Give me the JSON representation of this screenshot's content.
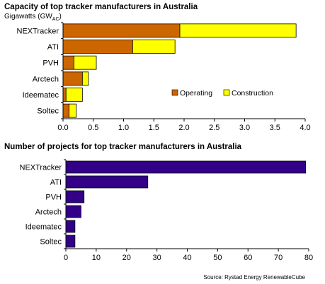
{
  "chart_data": [
    {
      "type": "bar",
      "orientation": "horizontal",
      "stacked": true,
      "title": "Capacity of top tracker manufacturers in Australia",
      "unit_prefix": "Gigawatts (GW",
      "unit_sub": "AC",
      "unit_suffix": ")",
      "categories": [
        "NEXTracker",
        "ATI",
        "PVH",
        "Arctech",
        "Ideematec",
        "Soltec"
      ],
      "series": [
        {
          "name": "Operating",
          "color": "#cc6600",
          "values": [
            1.93,
            1.15,
            0.18,
            0.32,
            0.05,
            0.1
          ]
        },
        {
          "name": "Construction",
          "color": "#ffff00",
          "values": [
            1.92,
            0.7,
            0.37,
            0.1,
            0.27,
            0.12
          ]
        }
      ],
      "xlim": [
        0,
        4.0
      ],
      "xticks": [
        "0.0",
        "0.5",
        "1.0",
        "1.5",
        "2.0",
        "2.5",
        "3.0",
        "3.5",
        "4.0"
      ],
      "grid": false,
      "legend_position": "bottom-right"
    },
    {
      "type": "bar",
      "orientation": "horizontal",
      "title": "Number of projects for top tracker manufacturers in Australia",
      "categories": [
        "NEXTracker",
        "ATI",
        "PVH",
        "Arctech",
        "Ideematec",
        "Soltec"
      ],
      "series": [
        {
          "color": "#330088",
          "values": [
            79,
            27,
            6,
            5,
            3,
            3
          ]
        }
      ],
      "xlim": [
        0,
        80
      ],
      "xticks": [
        "0",
        "10",
        "20",
        "30",
        "40",
        "50",
        "60",
        "70",
        "80"
      ],
      "grid": false
    }
  ],
  "source": "Source: Rystad Energy RenewableCube"
}
